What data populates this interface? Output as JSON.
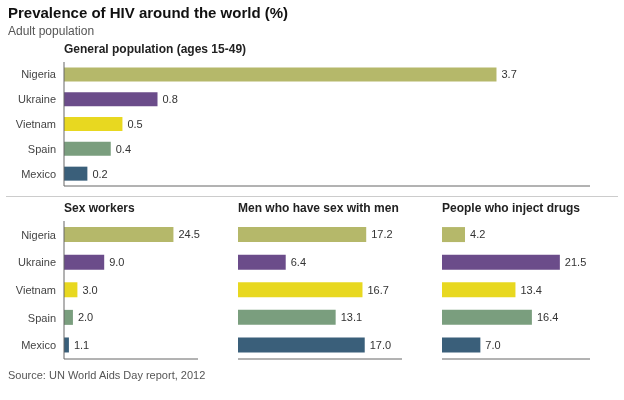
{
  "title": "Prevalence of HIV around the world (%)",
  "subtitle": "Adult population",
  "annotations": [
    "Source: UN World Aids Day report, 2012"
  ],
  "chart_data": [
    {
      "type": "bar",
      "orientation": "horizontal",
      "title": "General population (ages 15-49)",
      "categories": [
        "Nigeria",
        "Ukraine",
        "Vietnam",
        "Spain",
        "Mexico"
      ],
      "values": [
        3.7,
        0.8,
        0.5,
        0.4,
        0.2
      ],
      "colors": [
        "#b5b86a",
        "#6b4c8a",
        "#e8d820",
        "#7a9e7e",
        "#3a5f7a"
      ],
      "xlim": [
        0,
        4.5
      ],
      "data_labels": true,
      "tick_labels": "y",
      "grid": false
    },
    {
      "type": "bar",
      "orientation": "horizontal",
      "title": "Sex workers",
      "categories": [
        "Nigeria",
        "Ukraine",
        "Vietnam",
        "Spain",
        "Mexico"
      ],
      "values": [
        24.5,
        9.0,
        3.0,
        2.0,
        1.1
      ],
      "value_labels": [
        "24.5",
        "9.0",
        "3.0",
        "2.0",
        "1.1"
      ],
      "colors": [
        "#b5b86a",
        "#6b4c8a",
        "#e8d820",
        "#7a9e7e",
        "#3a5f7a"
      ],
      "xlim": [
        0,
        30.0
      ],
      "data_labels": true,
      "tick_labels": "y",
      "grid": false
    },
    {
      "type": "bar",
      "orientation": "horizontal",
      "title": "Men who have sex with men",
      "categories": [
        "Nigeria",
        "Ukraine",
        "Vietnam",
        "Spain",
        "Mexico"
      ],
      "values": [
        17.2,
        6.4,
        16.7,
        13.1,
        17.0
      ],
      "value_labels": [
        "17.2",
        "6.4",
        "16.7",
        "13.1",
        "17.0"
      ],
      "colors": [
        "#b5b86a",
        "#6b4c8a",
        "#e8d820",
        "#7a9e7e",
        "#3a5f7a"
      ],
      "xlim": [
        0,
        22.0
      ],
      "data_labels": true,
      "tick_labels": false,
      "grid": false
    },
    {
      "type": "bar",
      "orientation": "horizontal",
      "title": "People who inject drugs",
      "categories": [
        "Nigeria",
        "Ukraine",
        "Vietnam",
        "Spain",
        "Mexico"
      ],
      "values": [
        4.2,
        21.5,
        13.4,
        16.4,
        7.0
      ],
      "value_labels": [
        "4.2",
        "21.5",
        "13.4",
        "16.4",
        "7.0"
      ],
      "colors": [
        "#b5b86a",
        "#6b4c8a",
        "#e8d820",
        "#7a9e7e",
        "#3a5f7a"
      ],
      "xlim": [
        0,
        27.0
      ],
      "data_labels": true,
      "tick_labels": false,
      "grid": false
    }
  ]
}
